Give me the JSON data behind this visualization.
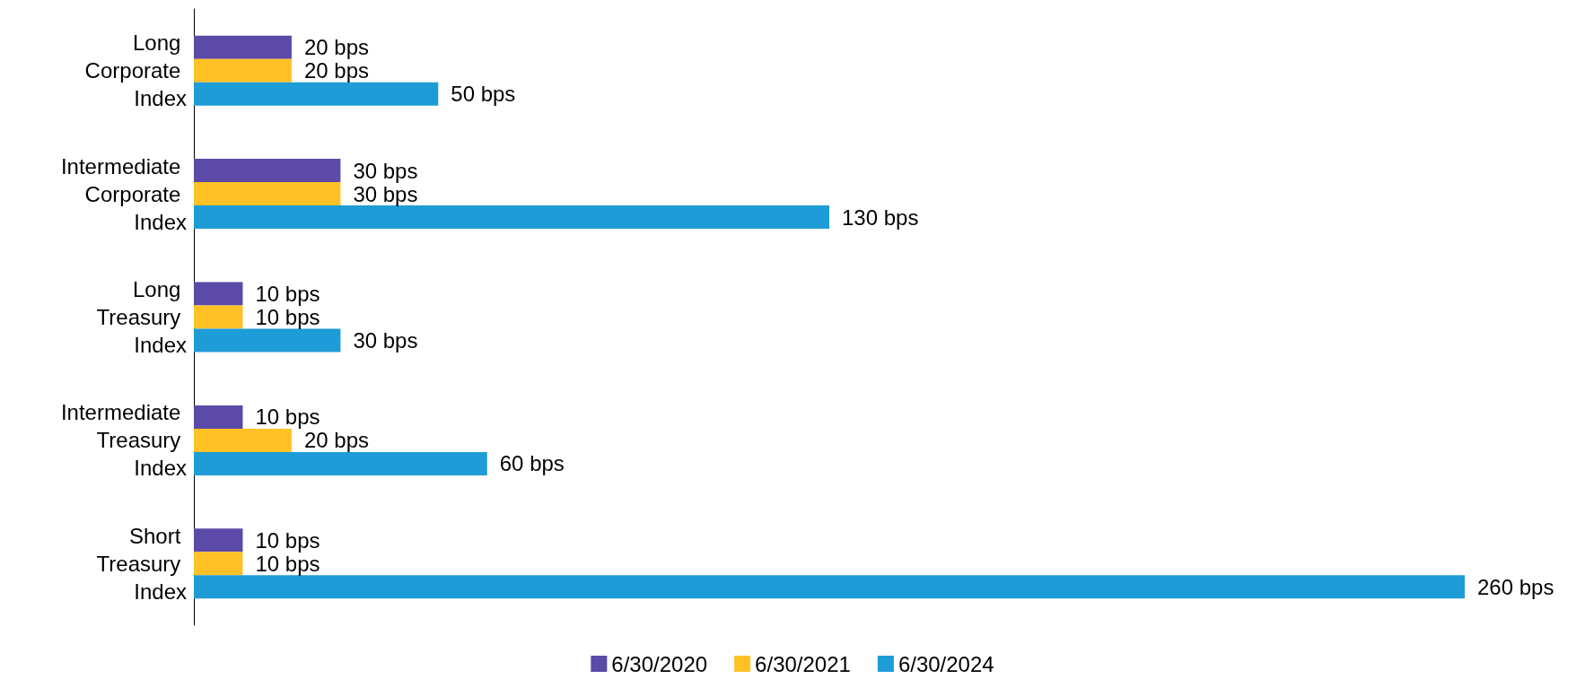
{
  "chart_data": {
    "type": "bar",
    "orientation": "horizontal",
    "categories": [
      "Long Corporate Index",
      "Intermediate Corporate Index",
      "Long Treasury Index",
      "Intermediate Treasury Index",
      "Short Treasury Index"
    ],
    "series": [
      {
        "name": "6/30/2020",
        "color": "#5b4aa8",
        "values": [
          20,
          30,
          10,
          10,
          10
        ],
        "value_labels": [
          "20 bps",
          "30 bps",
          "10 bps",
          "10 bps",
          "10 bps"
        ]
      },
      {
        "name": "6/30/2021",
        "color": "#ffc125",
        "values": [
          20,
          30,
          10,
          20,
          10
        ],
        "value_labels": [
          "20 bps",
          "30 bps",
          "10 bps",
          "20 bps",
          "10 bps"
        ]
      },
      {
        "name": "6/30/2024",
        "color": "#1e9cd7",
        "values": [
          50,
          130,
          30,
          60,
          260
        ],
        "value_labels": [
          "50 bps",
          "130 bps",
          "30 bps",
          "60 bps",
          "260 bps"
        ]
      }
    ],
    "legend": "bottom",
    "tick_labels": "y"
  }
}
